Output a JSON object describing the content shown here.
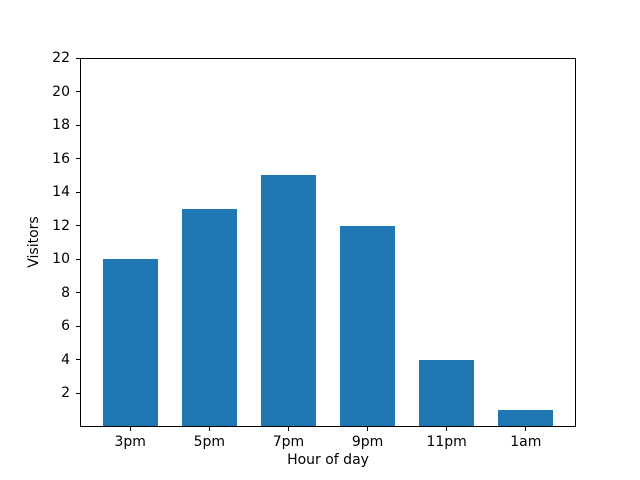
{
  "figure": {
    "background": "#ffffff"
  },
  "chart_data": {
    "type": "bar",
    "xlabel": "Hour of day",
    "ylabel": "Visitors",
    "categories": [
      "3pm",
      "5pm",
      "7pm",
      "9pm",
      "11pm",
      "1am"
    ],
    "values": [
      10,
      13,
      15,
      12,
      4,
      1
    ],
    "bar_color": "#1f77b4",
    "bar_width": 0.7,
    "xlim": [
      -0.635,
      5.635
    ],
    "ylim": [
      0,
      22
    ],
    "yticks": [
      2,
      4,
      6,
      8,
      10,
      12,
      14,
      16,
      18,
      20,
      22
    ],
    "grid": false,
    "legend": false,
    "axis_color": "#000000"
  }
}
